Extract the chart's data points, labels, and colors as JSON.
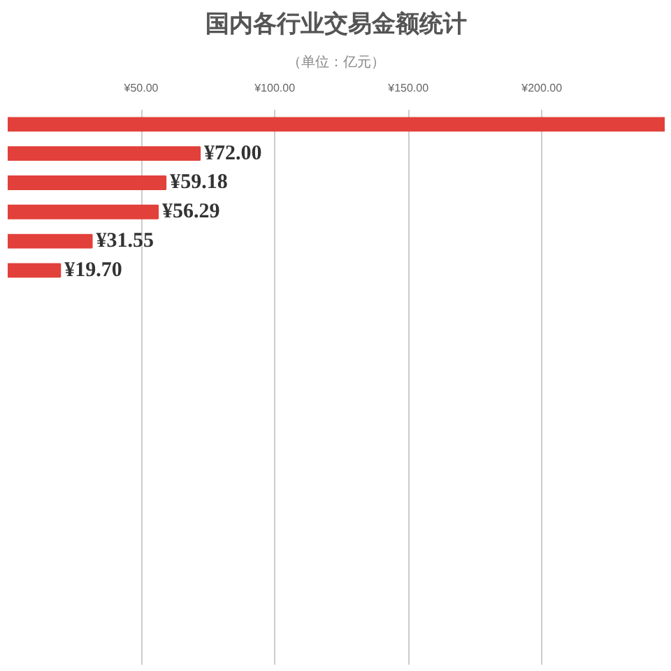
{
  "chart_data": {
    "type": "bar",
    "orientation": "horizontal",
    "title": "国内各行业交易金额统计",
    "subtitle": "（单位：亿元）",
    "categories": [
      null,
      null,
      null,
      null,
      null,
      null
    ],
    "values": [
      246,
      72.0,
      59.18,
      56.29,
      31.55,
      19.7
    ],
    "value_labels": [
      null,
      "¥72.00",
      "¥59.18",
      "¥56.29",
      "¥31.55",
      "¥19.70"
    ],
    "color": "#e2403a",
    "xlim": [
      0,
      246
    ],
    "xticks": [
      {
        "value": 50,
        "label": "¥50.00"
      },
      {
        "value": 100,
        "label": "¥100.00"
      },
      {
        "value": 150,
        "label": "¥150.00"
      },
      {
        "value": 200,
        "label": "¥200.00"
      }
    ],
    "grid": "x"
  }
}
